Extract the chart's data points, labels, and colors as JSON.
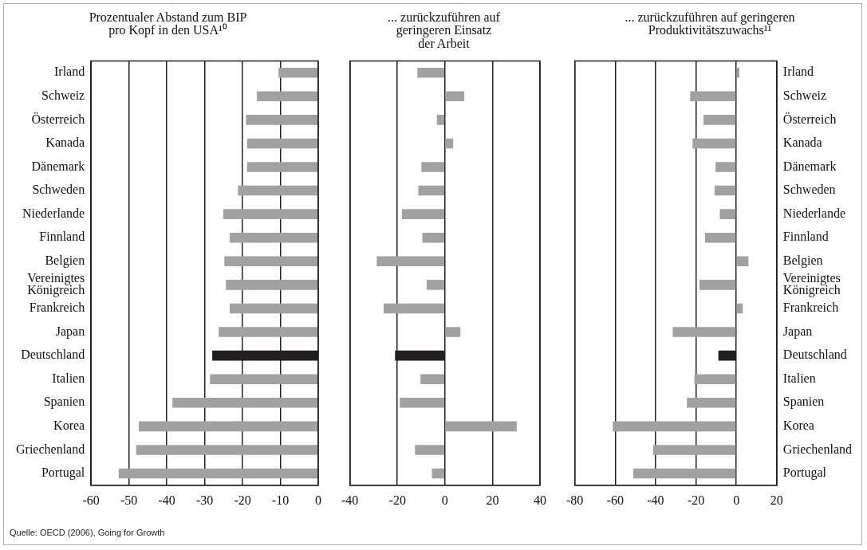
{
  "chart_data": [
    {
      "type": "bar",
      "orientation": "horizontal",
      "title": "Prozentualer Abstand zum BIP\npro Kopf in den USA¹⁰",
      "categories": [
        "Irland",
        "Schweiz",
        "Österreich",
        "Kanada",
        "Dänemark",
        "Schweden",
        "Niederlande",
        "Finnland",
        "Belgien",
        "Vereinigtes Königreich",
        "Frankreich",
        "Japan",
        "Deutschland",
        "Italien",
        "Spanien",
        "Korea",
        "Griechenland",
        "Portugal"
      ],
      "values": [
        -10.5,
        -16.2,
        -19.1,
        -18.8,
        -18.8,
        -21.2,
        -25.1,
        -23.4,
        -24.8,
        -24.4,
        -23.4,
        -26.3,
        -28.0,
        -28.6,
        -38.5,
        -47.4,
        -48.1,
        -52.7
      ],
      "colors": [
        "#a0a1a3",
        "#a0a1a3",
        "#a0a1a3",
        "#a0a1a3",
        "#a0a1a3",
        "#a0a1a3",
        "#a0a1a3",
        "#a0a1a3",
        "#a0a1a3",
        "#a0a1a3",
        "#a0a1a3",
        "#a0a1a3",
        "#231f20",
        "#a0a1a3",
        "#a0a1a3",
        "#a0a1a3",
        "#a0a1a3",
        "#a0a1a3"
      ],
      "xlim": [
        -60,
        0
      ],
      "xticks": [
        -60,
        -50,
        -40,
        -30,
        -20,
        -10,
        0
      ],
      "grid": "x",
      "annotations": [
        "Quelle: OECD (2006), Going for Growth"
      ]
    },
    {
      "type": "bar",
      "orientation": "horizontal",
      "title": "... zurückzuführen auf\ngeringeren Einsatz\nder Arbeit",
      "categories": [
        null,
        null,
        null,
        null,
        null,
        null,
        null,
        null,
        null,
        null,
        null,
        null,
        null,
        null,
        null,
        null,
        null,
        null
      ],
      "values": [
        -11.6,
        8.1,
        -3.4,
        3.5,
        -9.9,
        -11.2,
        -18.1,
        -9.5,
        -28.7,
        -7.7,
        -25.8,
        6.5,
        -21.0,
        -10.3,
        -19.0,
        30.2,
        -12.6,
        -5.5
      ],
      "colors": [
        "#a0a1a3",
        "#a0a1a3",
        "#a0a1a3",
        "#a0a1a3",
        "#a0a1a3",
        "#a0a1a3",
        "#a0a1a3",
        "#a0a1a3",
        "#a0a1a3",
        "#a0a1a3",
        "#a0a1a3",
        "#a0a1a3",
        "#231f20",
        "#a0a1a3",
        "#a0a1a3",
        "#a0a1a3",
        "#a0a1a3",
        "#a0a1a3"
      ],
      "xlim": [
        -40,
        40
      ],
      "xticks": [
        -40,
        -20,
        0,
        20,
        40
      ],
      "grid": "x",
      "tick_labels": "x"
    },
    {
      "type": "bar",
      "orientation": "horizontal",
      "title": "... zurückzuführen auf geringeren\nProduktivitätszuwachs¹¹",
      "categories": [
        "Irland",
        "Schweiz",
        "Österreich",
        "Kanada",
        "Dänemark",
        "Schweden",
        "Niederlande",
        "Finnland",
        "Belgien",
        "Vereinigtes Königreich",
        "Frankreich",
        "Japan",
        "Deutschland",
        "Italien",
        "Spanien",
        "Korea",
        "Griechenland",
        "Portugal"
      ],
      "values": [
        1.5,
        -22.9,
        -16.3,
        -21.7,
        -10.3,
        -10.8,
        -8.2,
        -15.5,
        6.0,
        -18.3,
        3.2,
        -31.5,
        -8.9,
        -20.8,
        -24.5,
        -61.2,
        -41.2,
        -51.1
      ],
      "colors": [
        "#a0a1a3",
        "#a0a1a3",
        "#a0a1a3",
        "#a0a1a3",
        "#a0a1a3",
        "#a0a1a3",
        "#a0a1a3",
        "#a0a1a3",
        "#a0a1a3",
        "#a0a1a3",
        "#a0a1a3",
        "#a0a1a3",
        "#231f20",
        "#a0a1a3",
        "#a0a1a3",
        "#a0a1a3",
        "#a0a1a3",
        "#a0a1a3"
      ],
      "xlim": [
        -80,
        20
      ],
      "xticks": [
        -80,
        -60,
        -40,
        -20,
        0,
        20
      ],
      "grid": "x"
    }
  ]
}
